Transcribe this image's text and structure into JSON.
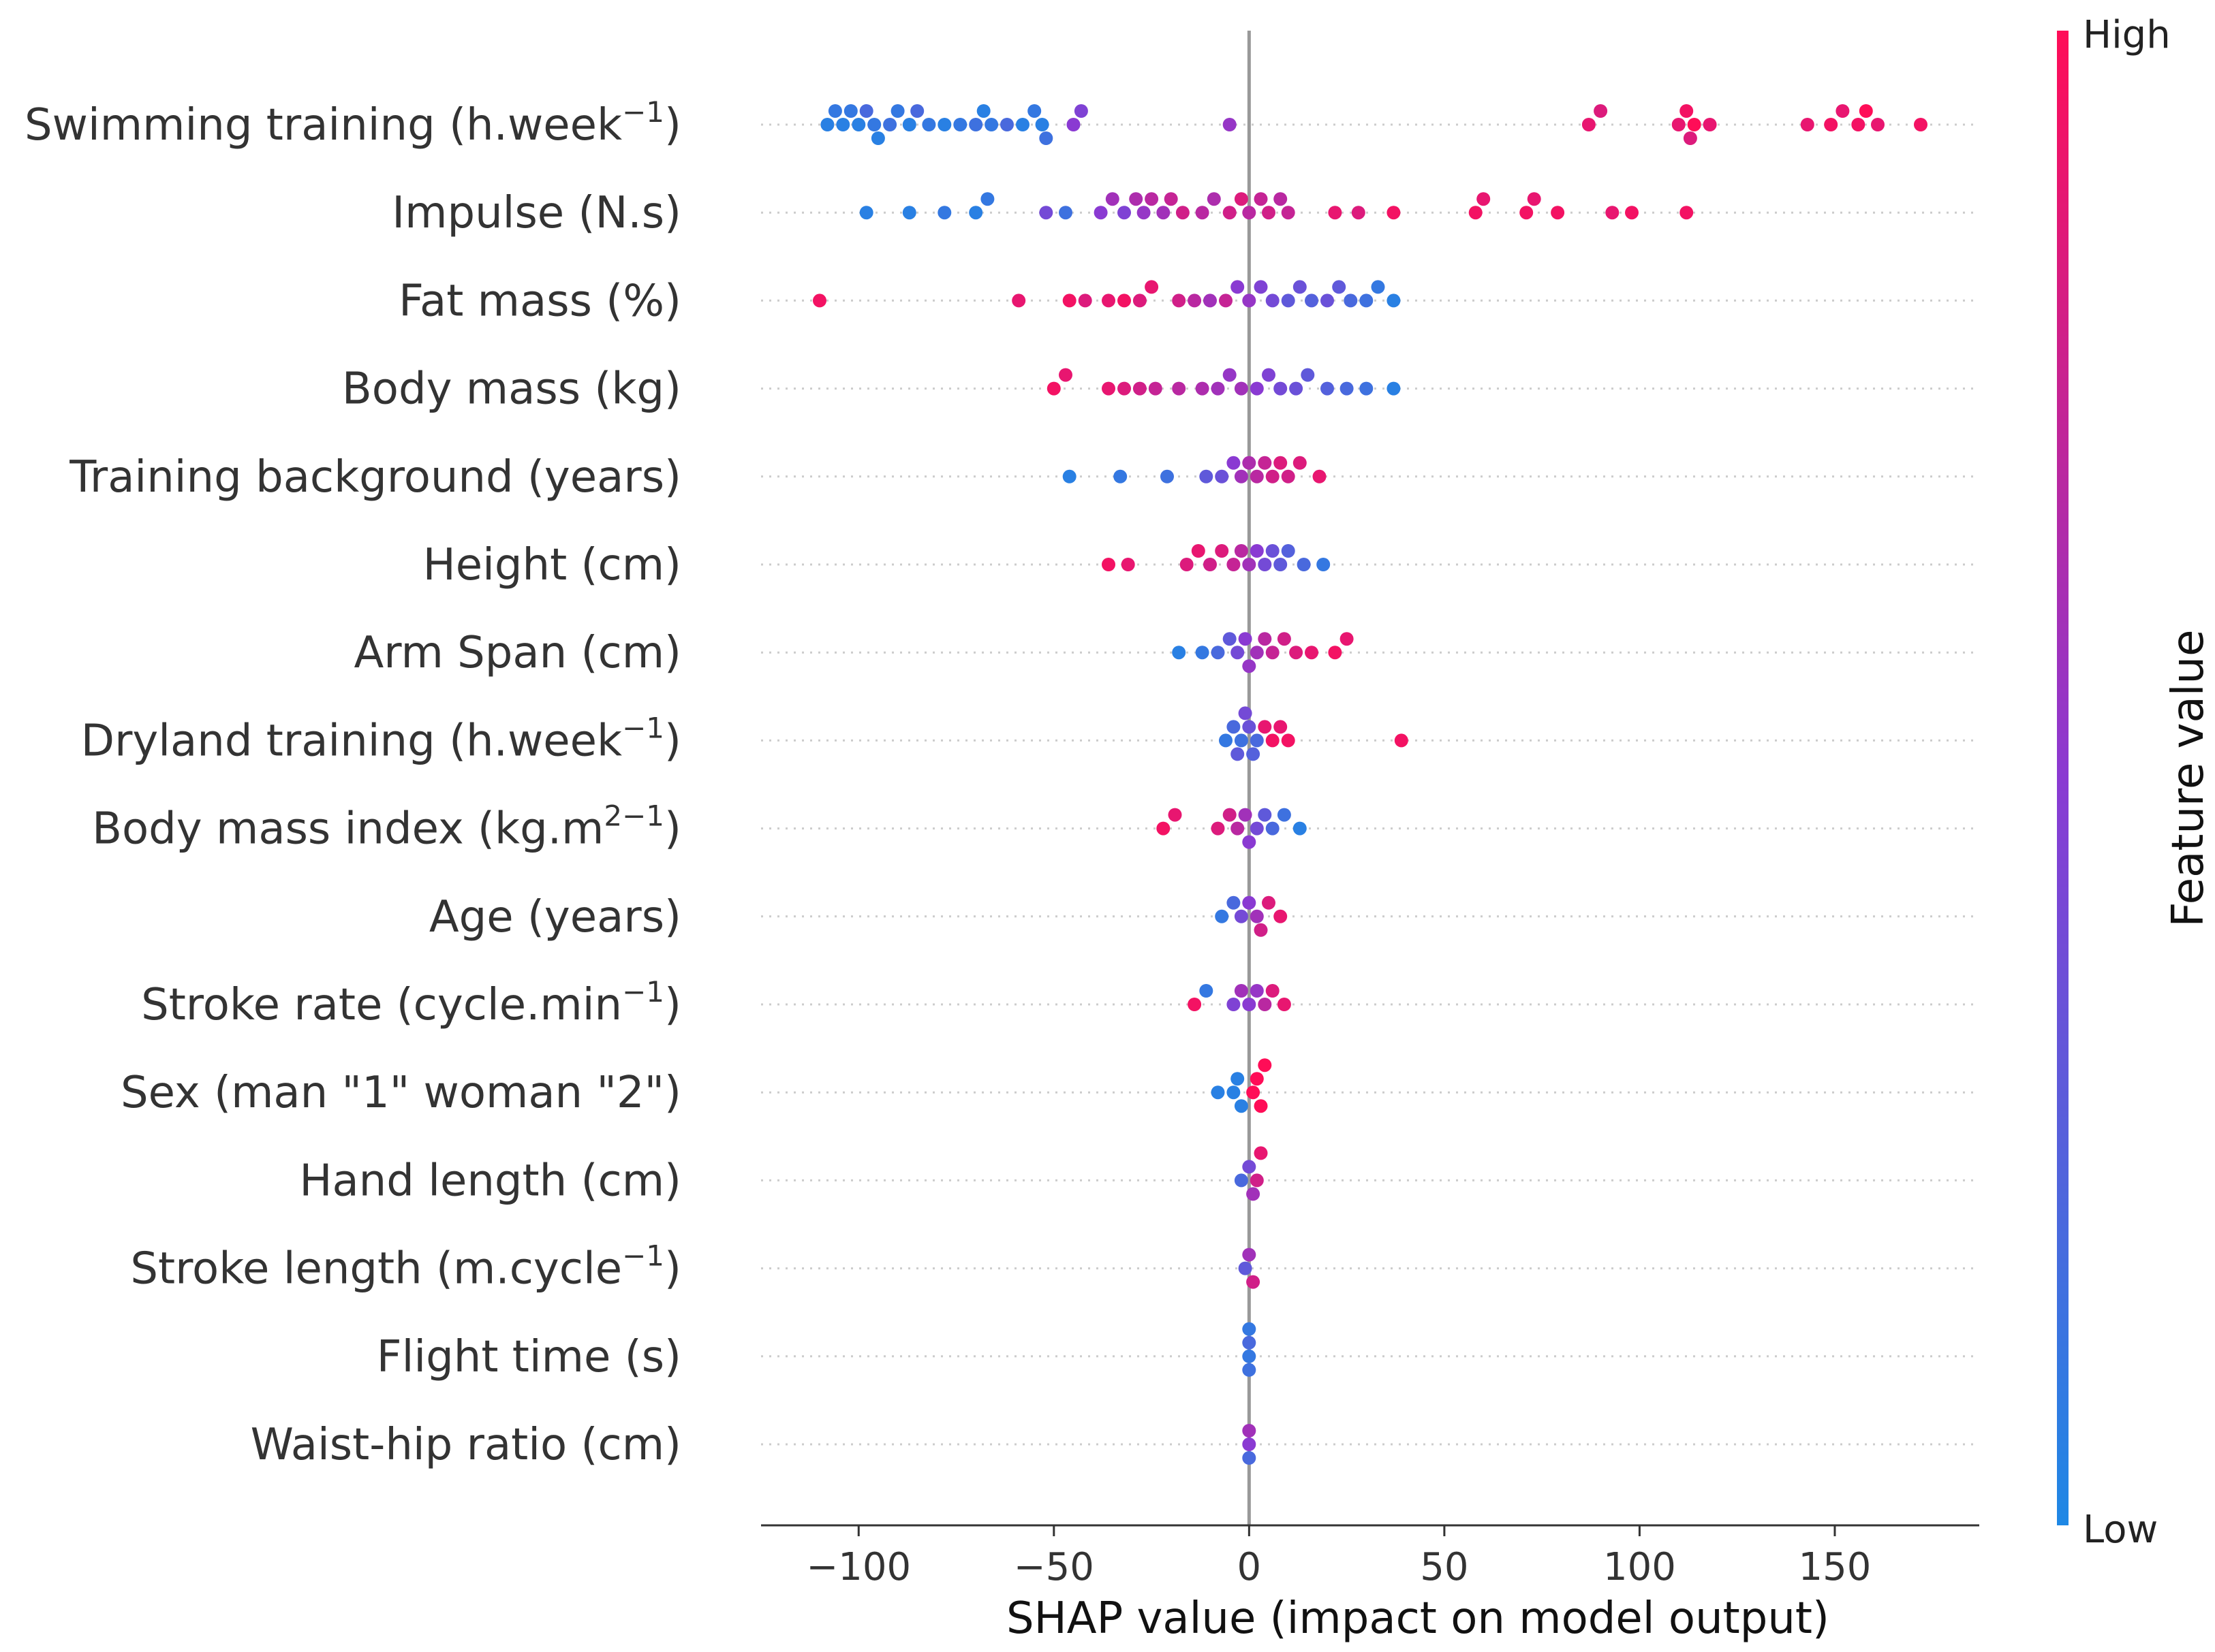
{
  "chart_data": {
    "type": "scatter",
    "subtype": "shap-beeswarm",
    "xlabel": "SHAP value (impact on model output)",
    "ylabel": "",
    "xlim": [
      -125,
      187
    ],
    "xticks": [
      -100,
      -50,
      0,
      50,
      100,
      150
    ],
    "xtick_labels": [
      "−100",
      "−50",
      "0",
      "50",
      "100",
      "150"
    ],
    "colorbar": {
      "title": "Feature value",
      "high_label": "High",
      "low_label": "Low",
      "low_color": "#1e88e5",
      "high_color": "#ff0d57",
      "mid_color": "#8a3ad2"
    },
    "features": [
      {
        "label": {
          "base": "Swimming training (h.week",
          "sup": "−1",
          "tail": ")"
        },
        "points": [
          [
            -108,
            0.05
          ],
          [
            -106,
            0.1
          ],
          [
            -104,
            0.05
          ],
          [
            -102,
            0.1
          ],
          [
            -100,
            0.05
          ],
          [
            -98,
            0.2
          ],
          [
            -96,
            0.1
          ],
          [
            -95,
            0.05
          ],
          [
            -92,
            0.15
          ],
          [
            -90,
            0.1
          ],
          [
            -87,
            0.05
          ],
          [
            -85,
            0.2
          ],
          [
            -82,
            0.1
          ],
          [
            -78,
            0.05
          ],
          [
            -74,
            0.1
          ],
          [
            -70,
            0.15
          ],
          [
            -68,
            0.05
          ],
          [
            -66,
            0.1
          ],
          [
            -62,
            0.2
          ],
          [
            -58,
            0.05
          ],
          [
            -55,
            0.1
          ],
          [
            -53,
            0.05
          ],
          [
            -52,
            0.15
          ],
          [
            -45,
            0.5
          ],
          [
            -43,
            0.45
          ],
          [
            -5,
            0.55
          ],
          [
            87,
            0.9
          ],
          [
            90,
            0.85
          ],
          [
            110,
            0.9
          ],
          [
            112,
            0.95
          ],
          [
            113,
            0.85
          ],
          [
            114,
            1.0
          ],
          [
            118,
            0.9
          ],
          [
            143,
            0.9
          ],
          [
            149,
            0.95
          ],
          [
            152,
            0.9
          ],
          [
            156,
            0.95
          ],
          [
            158,
            1.0
          ],
          [
            161,
            0.9
          ],
          [
            172,
            0.95
          ]
        ]
      },
      {
        "label": {
          "base": "Impulse (N.s)",
          "sup": "",
          "tail": ""
        },
        "points": [
          [
            -98,
            0.05
          ],
          [
            -87,
            0.05
          ],
          [
            -78,
            0.1
          ],
          [
            -70,
            0.05
          ],
          [
            -67,
            0.1
          ],
          [
            -52,
            0.4
          ],
          [
            -47,
            0.15
          ],
          [
            -38,
            0.5
          ],
          [
            -35,
            0.6
          ],
          [
            -32,
            0.45
          ],
          [
            -29,
            0.65
          ],
          [
            -27,
            0.55
          ],
          [
            -25,
            0.7
          ],
          [
            -22,
            0.6
          ],
          [
            -20,
            0.75
          ],
          [
            -17,
            0.8
          ],
          [
            -12,
            0.7
          ],
          [
            -9,
            0.65
          ],
          [
            -5,
            0.8
          ],
          [
            -2,
            0.85
          ],
          [
            0,
            0.7
          ],
          [
            3,
            0.75
          ],
          [
            5,
            0.8
          ],
          [
            8,
            0.7
          ],
          [
            10,
            0.75
          ],
          [
            22,
            0.9
          ],
          [
            28,
            0.85
          ],
          [
            37,
            0.95
          ],
          [
            58,
            0.95
          ],
          [
            60,
            0.9
          ],
          [
            71,
            0.95
          ],
          [
            73,
            0.9
          ],
          [
            79,
            0.95
          ],
          [
            93,
            0.9
          ],
          [
            98,
            0.95
          ],
          [
            112,
            0.95
          ]
        ]
      },
      {
        "label": {
          "base": "Fat mass (%)",
          "sup": "",
          "tail": ""
        },
        "points": [
          [
            -110,
            0.95
          ],
          [
            -59,
            0.9
          ],
          [
            -46,
            0.95
          ],
          [
            -42,
            0.85
          ],
          [
            -36,
            0.9
          ],
          [
            -32,
            0.95
          ],
          [
            -28,
            0.85
          ],
          [
            -25,
            0.9
          ],
          [
            -18,
            0.8
          ],
          [
            -14,
            0.7
          ],
          [
            -10,
            0.6
          ],
          [
            -6,
            0.75
          ],
          [
            -3,
            0.5
          ],
          [
            0,
            0.55
          ],
          [
            3,
            0.45
          ],
          [
            6,
            0.4
          ],
          [
            10,
            0.3
          ],
          [
            13,
            0.35
          ],
          [
            16,
            0.25
          ],
          [
            20,
            0.35
          ],
          [
            23,
            0.3
          ],
          [
            26,
            0.2
          ],
          [
            30,
            0.15
          ],
          [
            33,
            0.1
          ],
          [
            37,
            0.05
          ]
        ]
      },
      {
        "label": {
          "base": "Body mass (kg)",
          "sup": "",
          "tail": ""
        },
        "points": [
          [
            -50,
            0.95
          ],
          [
            -47,
            0.9
          ],
          [
            -36,
            0.9
          ],
          [
            -32,
            0.85
          ],
          [
            -28,
            0.8
          ],
          [
            -24,
            0.75
          ],
          [
            -18,
            0.7
          ],
          [
            -12,
            0.65
          ],
          [
            -8,
            0.6
          ],
          [
            -5,
            0.55
          ],
          [
            -2,
            0.6
          ],
          [
            2,
            0.5
          ],
          [
            5,
            0.45
          ],
          [
            8,
            0.4
          ],
          [
            12,
            0.35
          ],
          [
            15,
            0.3
          ],
          [
            20,
            0.25
          ],
          [
            25,
            0.2
          ],
          [
            30,
            0.15
          ],
          [
            37,
            0.05
          ]
        ]
      },
      {
        "label": {
          "base": "Training background (years)",
          "sup": "",
          "tail": ""
        },
        "points": [
          [
            -46,
            0.05
          ],
          [
            -33,
            0.1
          ],
          [
            -21,
            0.15
          ],
          [
            -11,
            0.3
          ],
          [
            -7,
            0.35
          ],
          [
            -4,
            0.5
          ],
          [
            -2,
            0.6
          ],
          [
            0,
            0.65
          ],
          [
            2,
            0.7
          ],
          [
            4,
            0.75
          ],
          [
            6,
            0.8
          ],
          [
            8,
            0.85
          ],
          [
            10,
            0.8
          ],
          [
            13,
            0.85
          ],
          [
            18,
            0.9
          ]
        ]
      },
      {
        "label": {
          "base": "Height (cm)",
          "sup": "",
          "tail": ""
        },
        "points": [
          [
            -36,
            0.95
          ],
          [
            -31,
            0.9
          ],
          [
            -16,
            0.85
          ],
          [
            -13,
            0.9
          ],
          [
            -10,
            0.8
          ],
          [
            -7,
            0.85
          ],
          [
            -4,
            0.75
          ],
          [
            -2,
            0.7
          ],
          [
            0,
            0.6
          ],
          [
            2,
            0.5
          ],
          [
            4,
            0.4
          ],
          [
            6,
            0.35
          ],
          [
            8,
            0.3
          ],
          [
            10,
            0.25
          ],
          [
            14,
            0.2
          ],
          [
            19,
            0.1
          ]
        ]
      },
      {
        "label": {
          "base": "Arm Span (cm)",
          "sup": "",
          "tail": ""
        },
        "points": [
          [
            -18,
            0.05
          ],
          [
            -12,
            0.1
          ],
          [
            -8,
            0.2
          ],
          [
            -5,
            0.3
          ],
          [
            -3,
            0.4
          ],
          [
            -1,
            0.5
          ],
          [
            0,
            0.55
          ],
          [
            2,
            0.6
          ],
          [
            4,
            0.7
          ],
          [
            6,
            0.75
          ],
          [
            9,
            0.8
          ],
          [
            12,
            0.85
          ],
          [
            16,
            0.9
          ],
          [
            22,
            0.95
          ],
          [
            25,
            0.9
          ]
        ]
      },
      {
        "label": {
          "base": "Dryland training (h.week",
          "sup": "−1",
          "tail": ")"
        },
        "points": [
          [
            -6,
            0.1
          ],
          [
            -4,
            0.2
          ],
          [
            -3,
            0.3
          ],
          [
            -2,
            0.15
          ],
          [
            -1,
            0.4
          ],
          [
            0,
            0.35
          ],
          [
            1,
            0.25
          ],
          [
            2,
            0.2
          ],
          [
            4,
            0.9
          ],
          [
            6,
            0.95
          ],
          [
            8,
            0.9
          ],
          [
            10,
            0.95
          ],
          [
            39,
            0.95
          ]
        ]
      },
      {
        "label": {
          "base": "Body mass index (kg.m",
          "sup": "2−1",
          "tail": ")"
        },
        "points": [
          [
            -22,
            0.95
          ],
          [
            -19,
            0.9
          ],
          [
            -8,
            0.85
          ],
          [
            -5,
            0.8
          ],
          [
            -3,
            0.7
          ],
          [
            -1,
            0.6
          ],
          [
            0,
            0.5
          ],
          [
            2,
            0.4
          ],
          [
            4,
            0.3
          ],
          [
            6,
            0.2
          ],
          [
            9,
            0.15
          ],
          [
            13,
            0.05
          ]
        ]
      },
      {
        "label": {
          "base": "Age (years)",
          "sup": "",
          "tail": ""
        },
        "points": [
          [
            -7,
            0.1
          ],
          [
            -4,
            0.2
          ],
          [
            -2,
            0.4
          ],
          [
            0,
            0.5
          ],
          [
            2,
            0.6
          ],
          [
            3,
            0.8
          ],
          [
            5,
            0.85
          ],
          [
            8,
            0.9
          ]
        ]
      },
      {
        "label": {
          "base": "Stroke rate (cycle.min",
          "sup": "−1",
          "tail": ")"
        },
        "points": [
          [
            -14,
            0.95
          ],
          [
            -11,
            0.1
          ],
          [
            -4,
            0.45
          ],
          [
            -2,
            0.6
          ],
          [
            0,
            0.5
          ],
          [
            2,
            0.55
          ],
          [
            4,
            0.7
          ],
          [
            6,
            0.85
          ],
          [
            9,
            0.9
          ]
        ]
      },
      {
        "label": {
          "base": "Sex (man \"1\" woman \"2\")",
          "sup": "",
          "tail": ""
        },
        "points": [
          [
            -8,
            0.05
          ],
          [
            -4,
            0.05
          ],
          [
            -3,
            0.05
          ],
          [
            -2,
            0.05
          ],
          [
            1,
            1.0
          ],
          [
            2,
            1.0
          ],
          [
            3,
            1.0
          ],
          [
            4,
            1.0
          ]
        ]
      },
      {
        "label": {
          "base": "Hand length (cm)",
          "sup": "",
          "tail": ""
        },
        "points": [
          [
            -2,
            0.2
          ],
          [
            0,
            0.4
          ],
          [
            1,
            0.6
          ],
          [
            2,
            0.8
          ],
          [
            3,
            0.9
          ]
        ]
      },
      {
        "label": {
          "base": "Stroke length (m.cycle",
          "sup": "−1",
          "tail": ")"
        },
        "points": [
          [
            -1,
            0.3
          ],
          [
            0,
            0.6
          ],
          [
            1,
            0.8
          ]
        ]
      },
      {
        "label": {
          "base": "Flight time (s)",
          "sup": "",
          "tail": ""
        },
        "points": [
          [
            0,
            0.1
          ],
          [
            0,
            0.2
          ],
          [
            0,
            0.15
          ],
          [
            0,
            0.1
          ]
        ]
      },
      {
        "label": {
          "base": "Waist-hip ratio (cm)",
          "sup": "",
          "tail": ""
        },
        "points": [
          [
            0,
            0.5
          ],
          [
            0,
            0.6
          ],
          [
            0,
            0.2
          ]
        ]
      }
    ]
  }
}
